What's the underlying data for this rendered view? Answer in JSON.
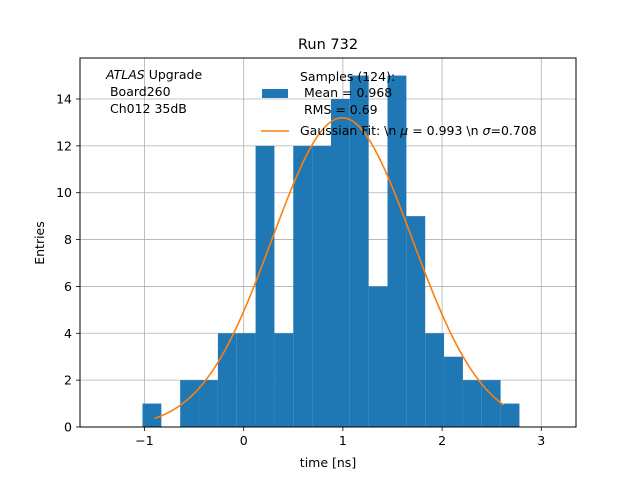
{
  "chart_data": {
    "type": "bar",
    "title": "Run 732",
    "xlabel": "time [ns]",
    "ylabel": "Entries",
    "xlim": [
      -1.65,
      3.35
    ],
    "ylim": [
      0,
      15.75
    ],
    "xticks": [
      -1,
      0,
      1,
      2,
      3
    ],
    "yticks": [
      0,
      2,
      4,
      6,
      8,
      10,
      12,
      14
    ],
    "grid": true,
    "annotation": {
      "italic": "ATLAS",
      "line1_rest": " Upgrade",
      "line2": " Board260",
      "line3": " Ch012 35dB"
    },
    "legend": {
      "placement": "top-right",
      "hist_lines": [
        "Samples (124):",
        " Mean = 0.968",
        " RMS = 0.69"
      ],
      "fit_label_parts": [
        "Gaussian Fit: \\n ",
        "μ",
        " = 0.993 \\n ",
        "σ",
        "=0.708"
      ]
    },
    "histogram": {
      "name": "Samples (124)",
      "color": "#1f77b4",
      "bin_edges": [
        -1.02,
        -0.83,
        -0.64,
        -0.45,
        -0.26,
        -0.07,
        0.12,
        0.31,
        0.5,
        0.69,
        0.88,
        1.07,
        1.26,
        1.45,
        1.64,
        1.83,
        2.02,
        2.21,
        2.4,
        2.59,
        2.78
      ],
      "counts": [
        1,
        0,
        2,
        2,
        4,
        4,
        12,
        4,
        12,
        12,
        14,
        15,
        6,
        15,
        9,
        4,
        3,
        2,
        2,
        1
      ]
    },
    "fit": {
      "name": "Gaussian Fit",
      "color": "#ff7f0e",
      "mu": 0.993,
      "sigma": 0.708,
      "amplitude": 13.2,
      "x_range": [
        -0.9,
        2.62
      ]
    }
  }
}
